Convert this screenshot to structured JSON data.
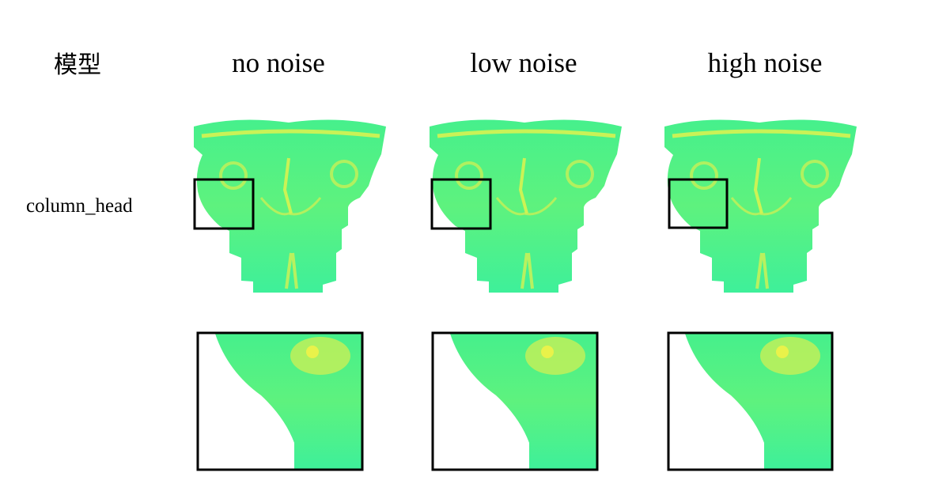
{
  "header": {
    "row_label": "模型",
    "columns": [
      "no noise",
      "low noise",
      "high noise"
    ]
  },
  "rows": [
    {
      "label": "column_head"
    }
  ]
}
